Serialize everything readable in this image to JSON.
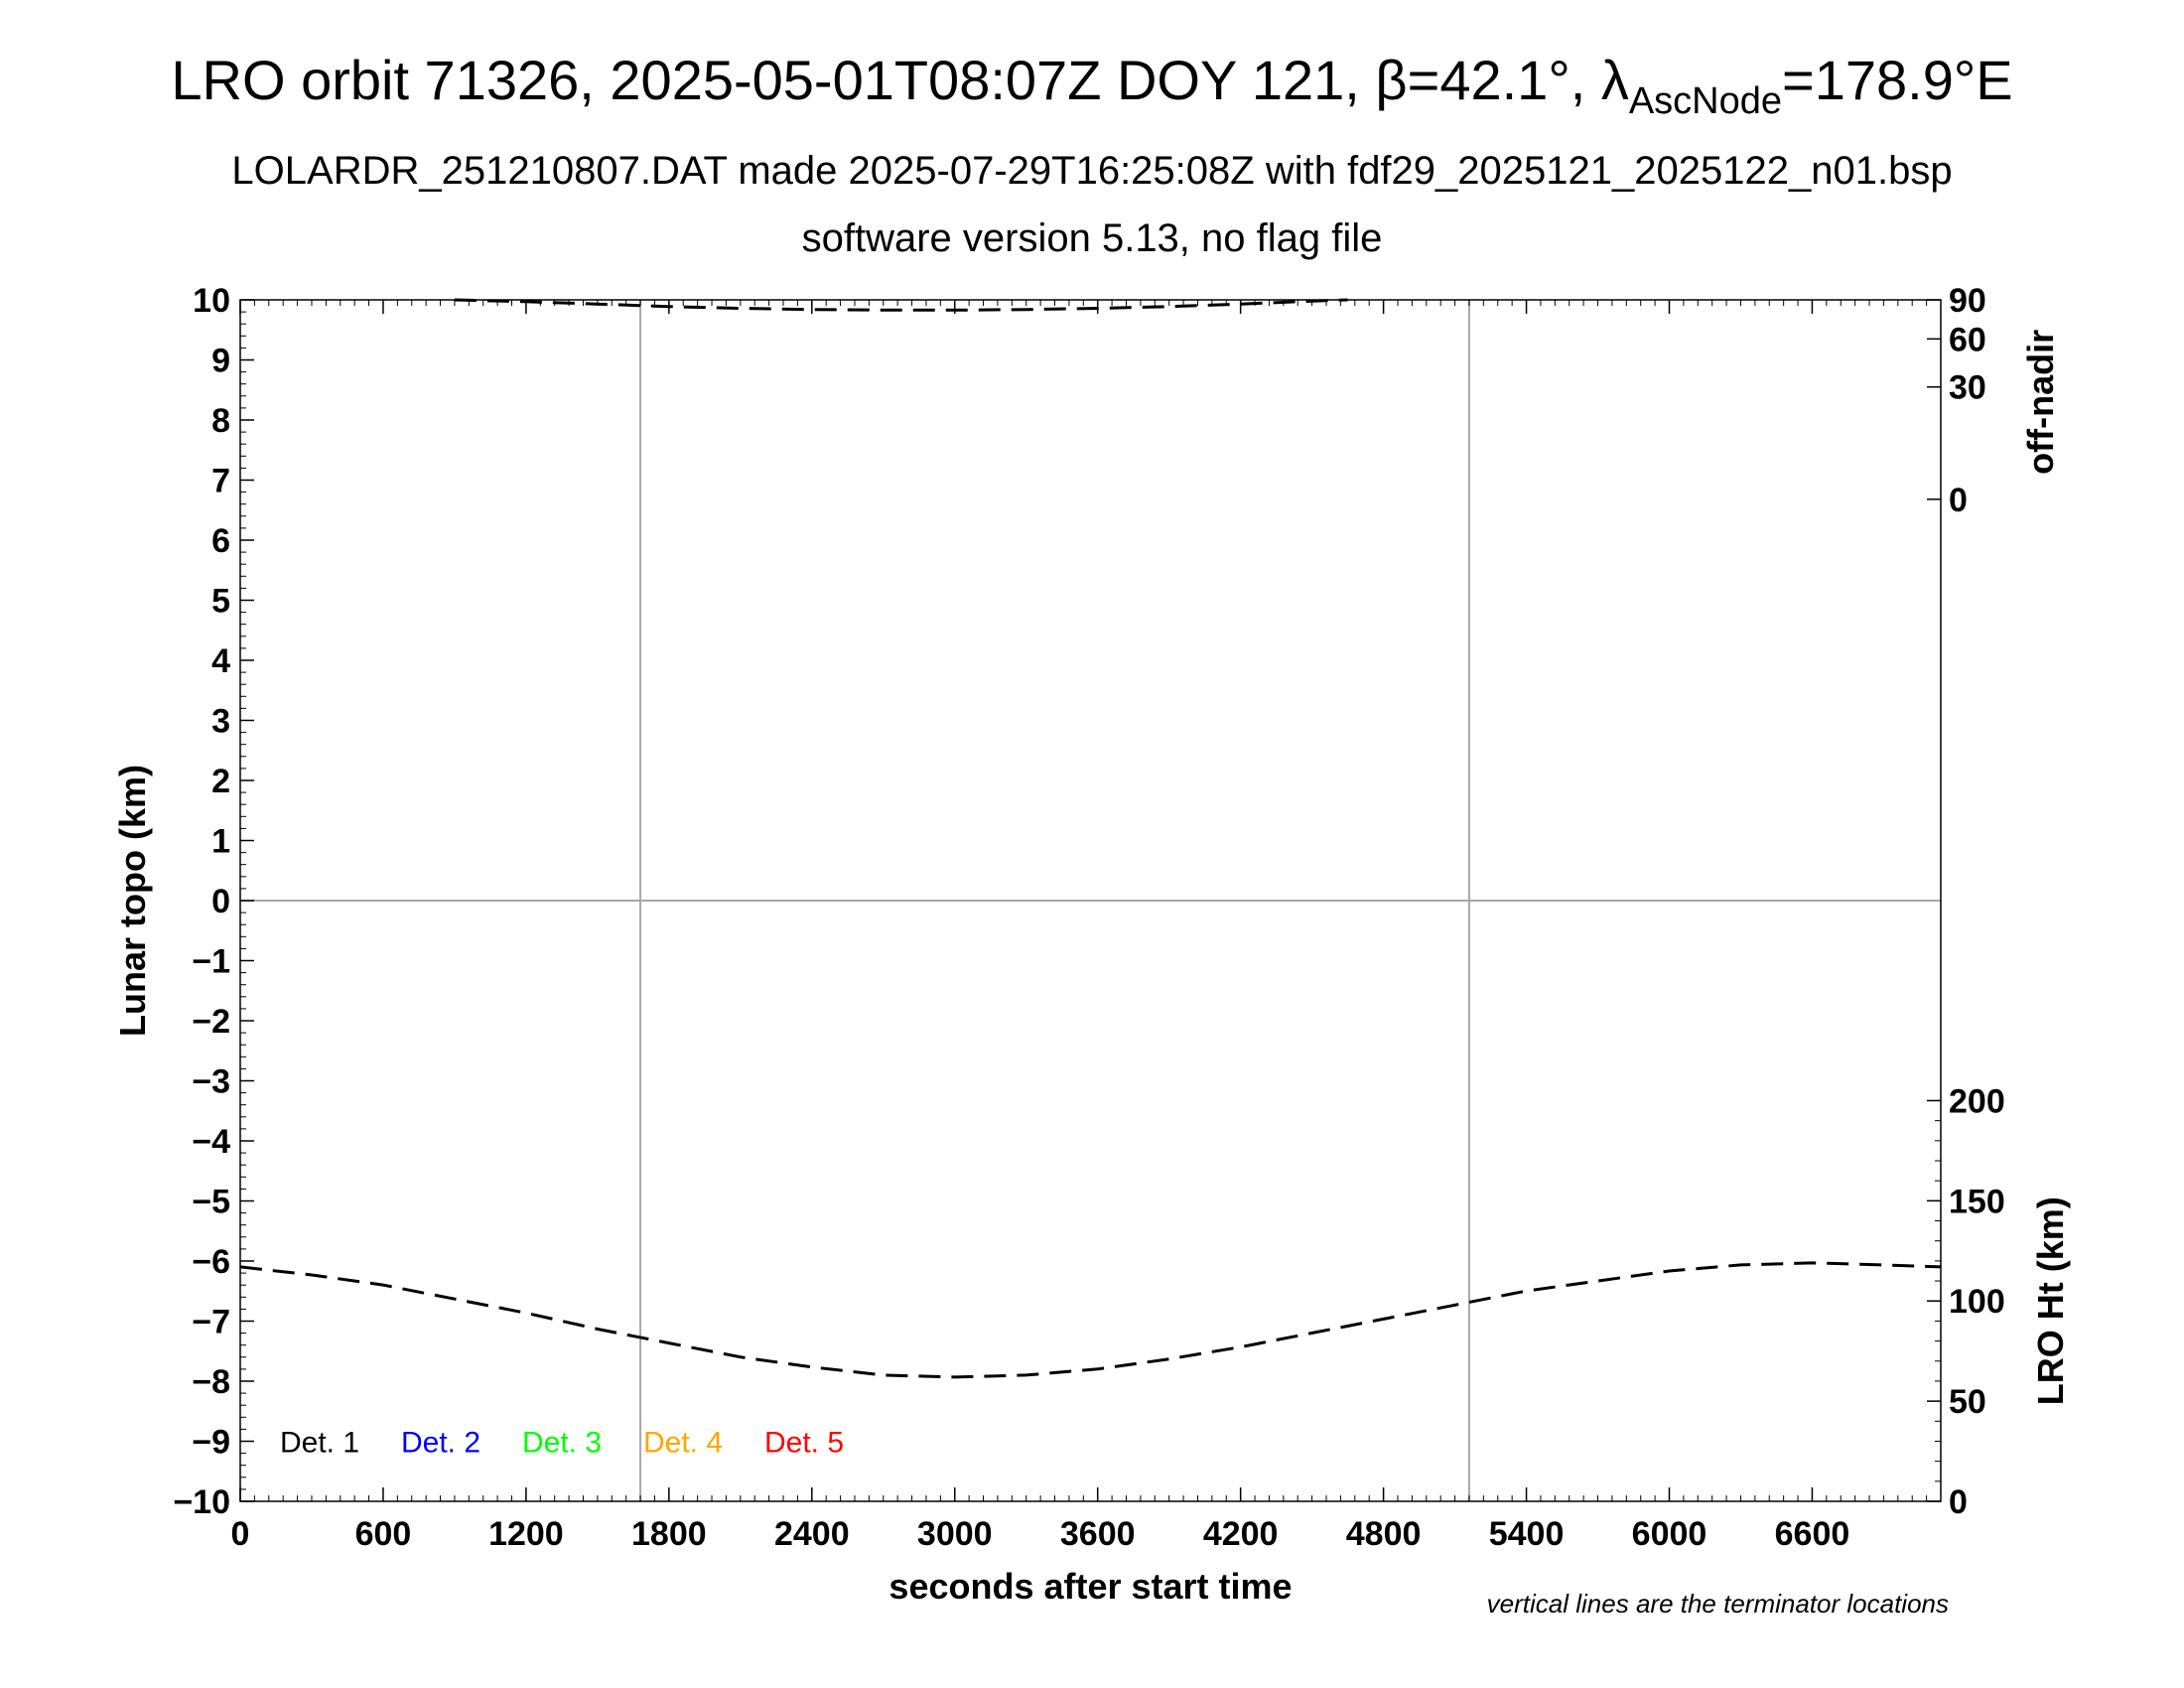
{
  "header": {
    "title_main": "LRO orbit 71326, 2025-05-01T08:07Z DOY 121, β=42.1°, λ",
    "title_sub": "AscNode",
    "title_end": "=178.9°E",
    "subtitle": "LOLARDR_251210807.DAT made 2025-07-29T16:25:08Z with fdf29_2025121_2025122_n01.bsp",
    "subtitle2": "software version 5.13, no flag file"
  },
  "chart_data": {
    "type": "line",
    "xlabel": "seconds after start time",
    "ylabel_left": "Lunar topo (km)",
    "ylabel_right_top": "off-nadir",
    "ylabel_right_bottom": "LRO Ht (km)",
    "footnote": "vertical lines are the terminator locations",
    "xlim": [
      0,
      7140
    ],
    "ylim_left": [
      -10,
      10
    ],
    "x_ticks": [
      0,
      600,
      1200,
      1800,
      2400,
      3000,
      3600,
      4200,
      4800,
      5400,
      6000,
      6600
    ],
    "x_tick_labels": [
      "0",
      "600",
      "1200",
      "1800",
      "2400",
      "3000",
      "3600",
      "4200",
      "4800",
      "5400",
      "6000",
      "6600"
    ],
    "y_left_ticks": [
      10,
      9,
      8,
      7,
      6,
      5,
      4,
      3,
      2,
      1,
      0,
      -1,
      -2,
      -3,
      -4,
      -5,
      -6,
      -7,
      -8,
      -9,
      -10
    ],
    "y_left_tick_labels": [
      "10",
      "9",
      "8",
      "7",
      "6",
      "5",
      "4",
      "3",
      "2",
      "1",
      "0",
      "−1",
      "−2",
      "−3",
      "−4",
      "−5",
      "−6",
      "−7",
      "−8",
      "−9",
      "−10"
    ],
    "right_top_axis": {
      "range_left_units": [
        6.7,
        10
      ],
      "ticks": [
        {
          "value": 90,
          "label": "90",
          "at_left": 10.0
        },
        {
          "value": 60,
          "label": "60",
          "at_left": 9.35
        },
        {
          "value": 30,
          "label": "30",
          "at_left": 8.55
        },
        {
          "value": 0,
          "label": "0",
          "at_left": 6.68
        }
      ]
    },
    "right_bottom_axis": {
      "range": [
        0,
        200
      ],
      "ticks": [
        200,
        150,
        100,
        50,
        0
      ],
      "maps_to_left": [
        -10,
        -3.33
      ]
    },
    "terminators_x": [
      1680,
      5160
    ],
    "zero_line": 0,
    "series": [
      {
        "name": "off-nadir",
        "style": "dashed",
        "axis": "right_top",
        "x": [
          900,
          1200,
          1500,
          1800,
          2100,
          2400,
          2700,
          3000,
          3300,
          3600,
          3900,
          4200,
          4500,
          4650
        ],
        "y": [
          10.0,
          9.97,
          9.93,
          9.89,
          9.86,
          9.84,
          9.83,
          9.83,
          9.84,
          9.86,
          9.89,
          9.93,
          9.98,
          10.0
        ]
      },
      {
        "name": "LRO Ht (km)",
        "style": "dashed",
        "axis": "right_bottom",
        "x": [
          0,
          300,
          600,
          900,
          1200,
          1500,
          1800,
          2100,
          2400,
          2700,
          3000,
          3300,
          3600,
          3900,
          4200,
          4500,
          4800,
          5100,
          5400,
          5700,
          6000,
          6300,
          6600,
          6900,
          7140
        ],
        "y": [
          117,
          113,
          108,
          101,
          94,
          86,
          79,
          72,
          67,
          63,
          62,
          63,
          66,
          71,
          77,
          84,
          91,
          98,
          105,
          110,
          115,
          118,
          119,
          118,
          117
        ]
      }
    ],
    "legend": {
      "placement": "bottom-left",
      "entries": [
        {
          "label": "Det. 1",
          "color": "#000000"
        },
        {
          "label": "Det. 2",
          "color": "#0000ff"
        },
        {
          "label": "Det. 3",
          "color": "#00ff00"
        },
        {
          "label": "Det. 4",
          "color": "#ffa500"
        },
        {
          "label": "Det. 5",
          "color": "#ff0000"
        }
      ]
    }
  }
}
